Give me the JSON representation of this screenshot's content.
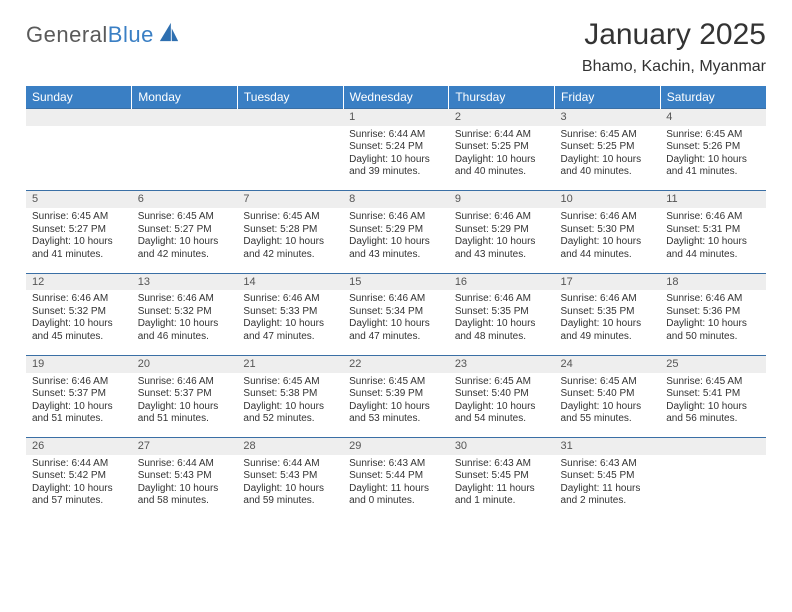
{
  "logo": {
    "word1": "General",
    "word2": "Blue"
  },
  "title": "January 2025",
  "location": "Bhamo, Kachin, Myanmar",
  "colors": {
    "headerBg": "#3a7fc4",
    "dayNumBg": "#eeeeee",
    "rule": "#3a6fa5",
    "text": "#333333"
  },
  "dayHeaders": [
    "Sunday",
    "Monday",
    "Tuesday",
    "Wednesday",
    "Thursday",
    "Friday",
    "Saturday"
  ],
  "weeks": [
    [
      null,
      null,
      null,
      {
        "n": "1",
        "sr": "6:44 AM",
        "ss": "5:24 PM",
        "dl": "10 hours and 39 minutes."
      },
      {
        "n": "2",
        "sr": "6:44 AM",
        "ss": "5:25 PM",
        "dl": "10 hours and 40 minutes."
      },
      {
        "n": "3",
        "sr": "6:45 AM",
        "ss": "5:25 PM",
        "dl": "10 hours and 40 minutes."
      },
      {
        "n": "4",
        "sr": "6:45 AM",
        "ss": "5:26 PM",
        "dl": "10 hours and 41 minutes."
      }
    ],
    [
      {
        "n": "5",
        "sr": "6:45 AM",
        "ss": "5:27 PM",
        "dl": "10 hours and 41 minutes."
      },
      {
        "n": "6",
        "sr": "6:45 AM",
        "ss": "5:27 PM",
        "dl": "10 hours and 42 minutes."
      },
      {
        "n": "7",
        "sr": "6:45 AM",
        "ss": "5:28 PM",
        "dl": "10 hours and 42 minutes."
      },
      {
        "n": "8",
        "sr": "6:46 AM",
        "ss": "5:29 PM",
        "dl": "10 hours and 43 minutes."
      },
      {
        "n": "9",
        "sr": "6:46 AM",
        "ss": "5:29 PM",
        "dl": "10 hours and 43 minutes."
      },
      {
        "n": "10",
        "sr": "6:46 AM",
        "ss": "5:30 PM",
        "dl": "10 hours and 44 minutes."
      },
      {
        "n": "11",
        "sr": "6:46 AM",
        "ss": "5:31 PM",
        "dl": "10 hours and 44 minutes."
      }
    ],
    [
      {
        "n": "12",
        "sr": "6:46 AM",
        "ss": "5:32 PM",
        "dl": "10 hours and 45 minutes."
      },
      {
        "n": "13",
        "sr": "6:46 AM",
        "ss": "5:32 PM",
        "dl": "10 hours and 46 minutes."
      },
      {
        "n": "14",
        "sr": "6:46 AM",
        "ss": "5:33 PM",
        "dl": "10 hours and 47 minutes."
      },
      {
        "n": "15",
        "sr": "6:46 AM",
        "ss": "5:34 PM",
        "dl": "10 hours and 47 minutes."
      },
      {
        "n": "16",
        "sr": "6:46 AM",
        "ss": "5:35 PM",
        "dl": "10 hours and 48 minutes."
      },
      {
        "n": "17",
        "sr": "6:46 AM",
        "ss": "5:35 PM",
        "dl": "10 hours and 49 minutes."
      },
      {
        "n": "18",
        "sr": "6:46 AM",
        "ss": "5:36 PM",
        "dl": "10 hours and 50 minutes."
      }
    ],
    [
      {
        "n": "19",
        "sr": "6:46 AM",
        "ss": "5:37 PM",
        "dl": "10 hours and 51 minutes."
      },
      {
        "n": "20",
        "sr": "6:46 AM",
        "ss": "5:37 PM",
        "dl": "10 hours and 51 minutes."
      },
      {
        "n": "21",
        "sr": "6:45 AM",
        "ss": "5:38 PM",
        "dl": "10 hours and 52 minutes."
      },
      {
        "n": "22",
        "sr": "6:45 AM",
        "ss": "5:39 PM",
        "dl": "10 hours and 53 minutes."
      },
      {
        "n": "23",
        "sr": "6:45 AM",
        "ss": "5:40 PM",
        "dl": "10 hours and 54 minutes."
      },
      {
        "n": "24",
        "sr": "6:45 AM",
        "ss": "5:40 PM",
        "dl": "10 hours and 55 minutes."
      },
      {
        "n": "25",
        "sr": "6:45 AM",
        "ss": "5:41 PM",
        "dl": "10 hours and 56 minutes."
      }
    ],
    [
      {
        "n": "26",
        "sr": "6:44 AM",
        "ss": "5:42 PM",
        "dl": "10 hours and 57 minutes."
      },
      {
        "n": "27",
        "sr": "6:44 AM",
        "ss": "5:43 PM",
        "dl": "10 hours and 58 minutes."
      },
      {
        "n": "28",
        "sr": "6:44 AM",
        "ss": "5:43 PM",
        "dl": "10 hours and 59 minutes."
      },
      {
        "n": "29",
        "sr": "6:43 AM",
        "ss": "5:44 PM",
        "dl": "11 hours and 0 minutes."
      },
      {
        "n": "30",
        "sr": "6:43 AM",
        "ss": "5:45 PM",
        "dl": "11 hours and 1 minute."
      },
      {
        "n": "31",
        "sr": "6:43 AM",
        "ss": "5:45 PM",
        "dl": "11 hours and 2 minutes."
      },
      null
    ]
  ],
  "labels": {
    "sunrise": "Sunrise:",
    "sunset": "Sunset:",
    "daylight": "Daylight:"
  }
}
